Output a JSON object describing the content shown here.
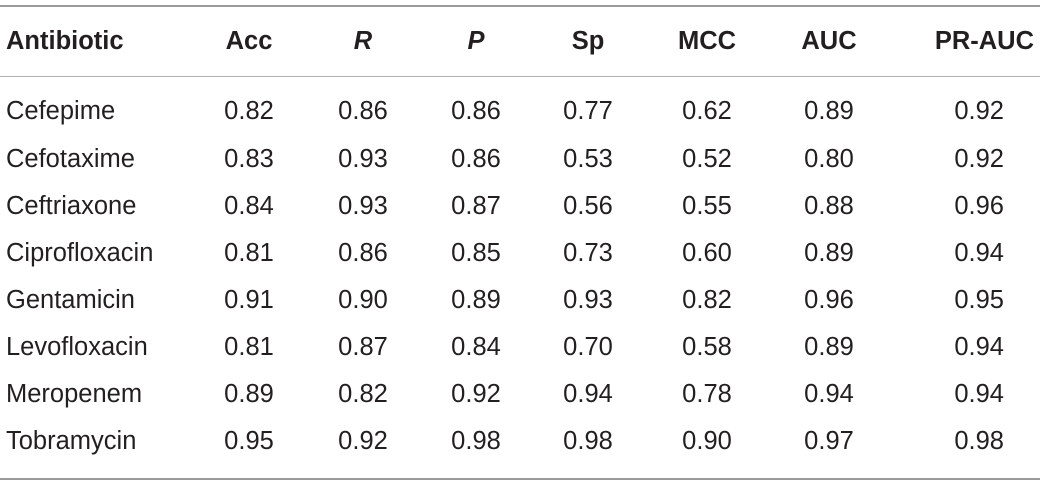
{
  "table": {
    "headers": [
      "Antibiotic",
      "Acc",
      "R",
      "P",
      "Sp",
      "MCC",
      "AUC",
      "PR-AUC"
    ],
    "rows": [
      [
        "Cefepime",
        "0.82",
        "0.86",
        "0.86",
        "0.77",
        "0.62",
        "0.89",
        "0.92"
      ],
      [
        "Cefotaxime",
        "0.83",
        "0.93",
        "0.86",
        "0.53",
        "0.52",
        "0.80",
        "0.92"
      ],
      [
        "Ceftriaxone",
        "0.84",
        "0.93",
        "0.87",
        "0.56",
        "0.55",
        "0.88",
        "0.96"
      ],
      [
        "Ciprofloxacin",
        "0.81",
        "0.86",
        "0.85",
        "0.73",
        "0.60",
        "0.89",
        "0.94"
      ],
      [
        "Gentamicin",
        "0.91",
        "0.90",
        "0.89",
        "0.93",
        "0.82",
        "0.96",
        "0.95"
      ],
      [
        "Levofloxacin",
        "0.81",
        "0.87",
        "0.84",
        "0.70",
        "0.58",
        "0.89",
        "0.94"
      ],
      [
        "Meropenem",
        "0.89",
        "0.82",
        "0.92",
        "0.94",
        "0.78",
        "0.94",
        "0.94"
      ],
      [
        "Tobramycin",
        "0.95",
        "0.92",
        "0.98",
        "0.98",
        "0.90",
        "0.97",
        "0.98"
      ]
    ]
  }
}
